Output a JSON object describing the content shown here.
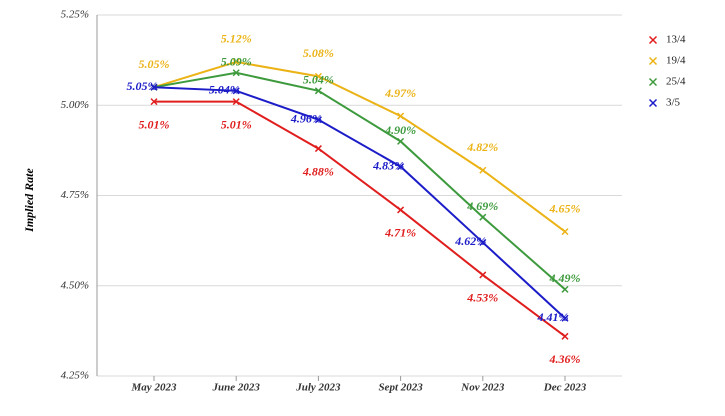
{
  "chart_data": {
    "type": "line",
    "y_label": "Implied Rate",
    "categories": [
      "May 2023",
      "June 2023",
      "July 2023",
      "Sept 2023",
      "Nov 2023",
      "Dec 2023"
    ],
    "series": [
      {
        "name": "13/4",
        "color": "#e01e1e",
        "values": [
          5.01,
          5.01,
          4.88,
          4.71,
          4.53,
          4.36
        ],
        "value_labels": [
          "5.01%",
          "5.01%",
          "4.88%",
          "4.71%",
          "4.53%",
          "4.36%"
        ]
      },
      {
        "name": "19/4",
        "color": "#ebb316",
        "values": [
          5.05,
          5.12,
          5.08,
          4.97,
          4.82,
          4.65
        ],
        "value_labels": [
          "5.05%",
          "5.12%",
          "5.08%",
          "4.97%",
          "4.82%",
          "4.65%"
        ]
      },
      {
        "name": "25/4",
        "color": "#3d9a3d",
        "values": [
          5.05,
          5.09,
          5.04,
          4.9,
          4.69,
          4.49
        ],
        "value_labels": [
          null,
          "5.09%",
          "5.04%",
          "4.90%",
          "4.69%",
          "4.49%"
        ]
      },
      {
        "name": "3/5",
        "color": "#1c1cc8",
        "values": [
          5.05,
          5.04,
          4.96,
          4.83,
          4.62,
          4.41
        ],
        "value_labels": [
          "5.05%",
          "5.04%",
          "4.96%",
          "4.83%",
          "4.62%",
          "4.41%"
        ]
      }
    ],
    "ylim": [
      4.25,
      5.25
    ],
    "yticks": [
      {
        "value": 4.25,
        "label": "4.25%"
      },
      {
        "value": 4.5,
        "label": "4.50%"
      },
      {
        "value": 4.75,
        "label": "4.75%"
      },
      {
        "value": 5.0,
        "label": "5.00%"
      },
      {
        "value": 5.25,
        "label": "5.25%"
      }
    ],
    "grid": true,
    "legend": "top-right"
  }
}
